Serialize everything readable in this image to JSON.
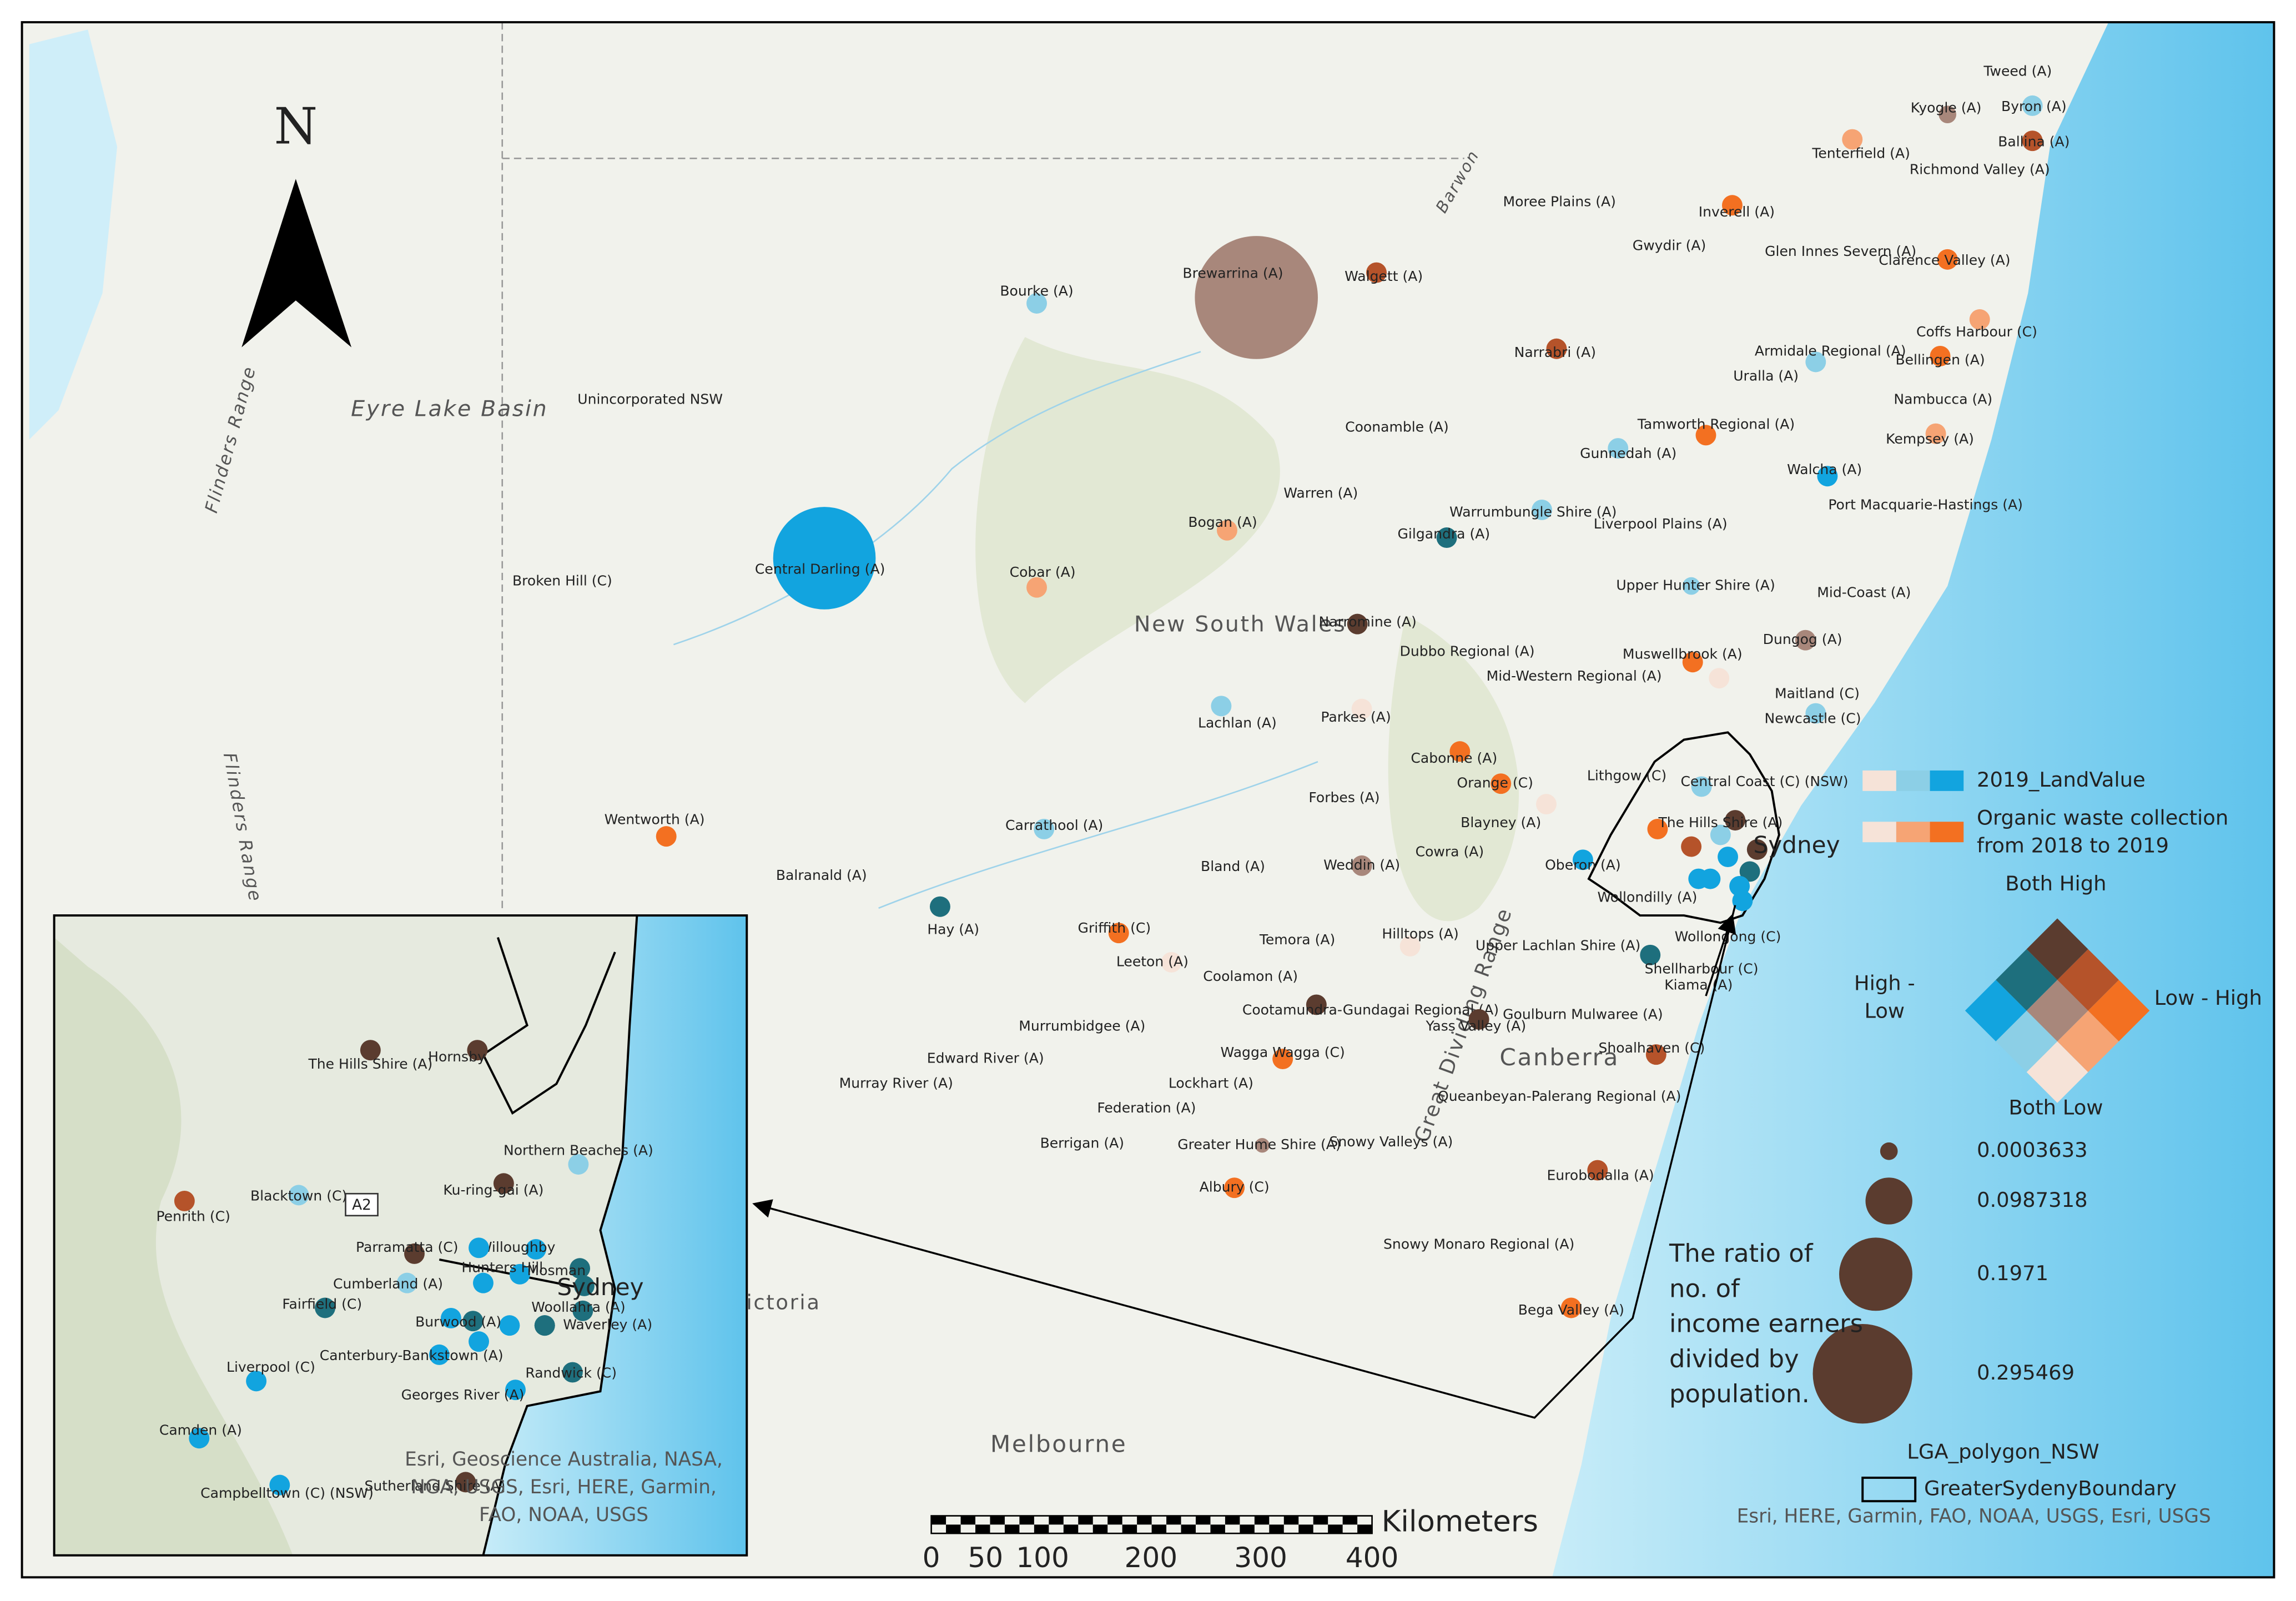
{
  "north_arrow": "N",
  "map_labels": [
    "Eyre Lake Basin",
    "New South Wales",
    "Canberra",
    "Melbourne",
    "Barwon",
    "Flinders Range",
    "Flinders Range",
    "Great Dividing Range",
    "Victoria"
  ],
  "places": [
    "Tweed (A)",
    "Kyogle (A)",
    "Byron (A)",
    "Ballina (A)",
    "Tenterfield (A)",
    "Richmond Valley (A)",
    "Moree Plains (A)",
    "Inverell (A)",
    "Gwydir (A)",
    "Glen Innes Severn (A)",
    "Clarence Valley (A)",
    "Bourke (A)",
    "Brewarrina (A)",
    "Walgett (A)",
    "Coffs Harbour (C)",
    "Narrabri (A)",
    "Armidale Regional (A)",
    "Bellingen (A)",
    "Uralla (A)",
    "Unincorporated NSW",
    "Nambucca (A)",
    "Tamworth Regional (A)",
    "Coonamble (A)",
    "Kempsey (A)",
    "Gunnedah (A)",
    "Walcha (A)",
    "Warren (A)",
    "Port Macquarie-Hastings (A)",
    "Warrumbungle Shire (A)",
    "Bogan (A)",
    "Gilgandra (A)",
    "Liverpool Plains (A)",
    "Central Darling (A)",
    "Broken Hill (C)",
    "Cobar (A)",
    "Upper Hunter Shire (A)",
    "Mid-Coast (A)",
    "Narromine (A)",
    "Dubbo Regional (A)",
    "Dungog (A)",
    "Muswellbrook (A)",
    "Mid-Western Regional (A)",
    "Maitland (C)",
    "Lachlan (A)",
    "Parkes (A)",
    "Newcastle (C)",
    "Cabonne (A)",
    "Lithgow (C)",
    "Central Coast (C) (NSW)",
    "Orange (C)",
    "Forbes (A)",
    "Wentworth (A)",
    "Carrathool (A)",
    "Blayney (A)",
    "Cowra (A)",
    "Weddin (A)",
    "Bland (A)",
    "Balranald (A)",
    "Oberon (A)",
    "Wollondilly (A)",
    "Hay (A)",
    "Griffith (C)",
    "Temora (A)",
    "Hilltops (A)",
    "Upper Lachlan Shire (A)",
    "Wollongong (C)",
    "Leeton (A)",
    "Coolamon (A)",
    "Shellharbour (C)",
    "Kiama (A)",
    "Cootamundra-Gundagai Regional (A)",
    "Yass Valley (A)",
    "Goulburn Mulwaree (A)",
    "Murrumbidgee (A)",
    "Wagga Wagga (C)",
    "Edward River (A)",
    "Murray River (A)",
    "Shoalhaven (C)",
    "Lockhart (A)",
    "Queanbeyan-Palerang Regional (A)",
    "Federation (A)",
    "Snowy Valleys (A)",
    "Greater Hume Shire (A)",
    "Berrigan (A)",
    "Albury (C)",
    "Eurobodalla (A)",
    "Snowy Monaro Regional (A)",
    "Bega Valley (A)",
    "The Hills Shire (A)",
    "Sydney"
  ],
  "inset": {
    "places": [
      "The Hills Shire (A)",
      "Hornsby",
      "Northern Beaches (A)",
      "Ku-ring-gai (A)",
      "Blacktown (C)",
      "Penrith (C)",
      "Parramatta (C)",
      "Willoughby",
      "Hunters Hill",
      "Mosman",
      "Cumberland (A)",
      "Sydney",
      "Fairfield (C)",
      "Burwood (A)",
      "Woollahra (A)",
      "Waverley (A)",
      "Canterbury-Bankstown (A)",
      "Liverpool (C)",
      "Randwick (C)",
      "Georges River (A)",
      "Camden (A)",
      "Campbelltown (C) (NSW)",
      "Sutherland Shire (A)"
    ],
    "road_shield": "A2",
    "attribution": [
      "Esri, Geoscience Australia, NASA,",
      "NGA, USGS, Esri, HERE, Garmin,",
      "FAO, NOAA, USGS"
    ]
  },
  "legend": {
    "land_value": "2019_LandValue",
    "organic_waste": [
      "Organic waste collection",
      "from 2018 to 2019"
    ],
    "bivariate": {
      "top": "Both High",
      "left": [
        "High -",
        "Low"
      ],
      "right": "Low - High",
      "bottom": "Both Low"
    },
    "size_labels": [
      "0.0003633",
      "0.0987318",
      "0.1971",
      "0.295469"
    ],
    "size_caption": [
      "The ratio of",
      "no. of",
      "income earners",
      "divided by",
      "population."
    ],
    "boundaries": [
      "LGA_polygon_NSW",
      "GreaterSydenyBoundary"
    ],
    "attribution": "Esri, HERE, Garmin, FAO, NOAA, USGS, Esri, USGS"
  },
  "scale_bar": {
    "unit": "Kilometers",
    "ticks": [
      0,
      50,
      100,
      200,
      300,
      400
    ]
  }
}
